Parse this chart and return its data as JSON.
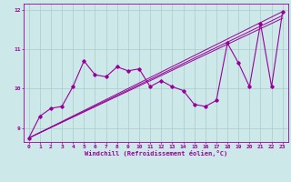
{
  "xlabel": "Windchill (Refroidissement éolien,°C)",
  "xlim": [
    -0.5,
    23.5
  ],
  "ylim": [
    8.65,
    12.15
  ],
  "yticks": [
    9,
    10,
    11,
    12
  ],
  "xticks": [
    0,
    1,
    2,
    3,
    4,
    5,
    6,
    7,
    8,
    9,
    10,
    11,
    12,
    13,
    14,
    15,
    16,
    17,
    18,
    19,
    20,
    21,
    22,
    23
  ],
  "bg_color": "#cce8e8",
  "line_color": "#990099",
  "grid_color": "#aacccc",
  "main_x": [
    0,
    1,
    2,
    3,
    4,
    5,
    6,
    7,
    8,
    9,
    10,
    11,
    12,
    13,
    14,
    15,
    16,
    17,
    18,
    19,
    20,
    21,
    22,
    23
  ],
  "main_y": [
    8.75,
    9.3,
    9.5,
    9.55,
    10.05,
    10.7,
    10.35,
    10.3,
    10.55,
    10.45,
    10.5,
    10.05,
    10.2,
    10.05,
    9.95,
    9.6,
    9.55,
    9.7,
    11.15,
    10.65,
    10.05,
    11.65,
    10.05,
    11.95
  ],
  "line2_x": [
    0,
    23
  ],
  "line2_y": [
    8.75,
    11.95
  ],
  "line3_x": [
    0,
    23
  ],
  "line3_y": [
    8.75,
    11.85
  ],
  "line4_x": [
    0,
    23
  ],
  "line4_y": [
    8.75,
    11.78
  ]
}
